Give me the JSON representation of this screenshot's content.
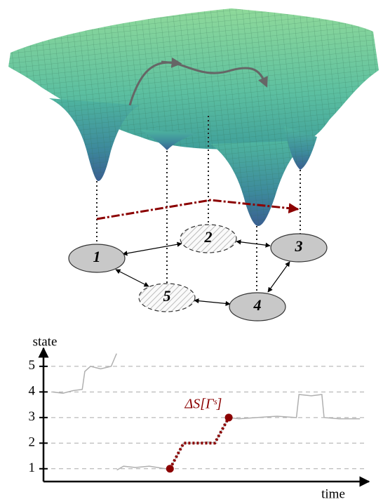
{
  "nodes": [
    {
      "label": "1"
    },
    {
      "label": "2"
    },
    {
      "label": "3"
    },
    {
      "label": "4"
    },
    {
      "label": "5"
    }
  ],
  "chart_data": {
    "type": "line",
    "y_label": "state",
    "x_label": "time",
    "annotation": "ΔS[Γˢ]",
    "xlim": [
      0,
      100
    ],
    "ylim": [
      0.5,
      5.6
    ],
    "yticks": [
      1,
      2,
      3,
      4,
      5
    ],
    "grid": true,
    "series": [
      {
        "color": "#b0b0b0",
        "x": [
          2.8,
          6.1,
          9.3,
          12.2,
          13,
          14.8,
          18,
          21.3,
          23,
          23.05,
          23.1,
          25.2,
          28.9,
          33.3,
          38.3,
          39.8,
          42,
          44.1,
          48.5,
          51.7,
          53.9,
          56.1,
          58.3,
          61.5,
          67,
          73.5,
          79.6,
          80.4,
          84.3,
          87.6,
          88.3,
          93,
          99.6
        ],
        "values": [
          4.0,
          3.95,
          4.05,
          4.1,
          4.8,
          5.0,
          4.9,
          5.0,
          5.5,
          null,
          0.95,
          1.1,
          1.05,
          1.1,
          1.0,
          1.0,
          1.5,
          2.0,
          2.0,
          2.05,
          2.0,
          2.5,
          3.0,
          2.95,
          3.0,
          3.05,
          3.0,
          3.9,
          3.85,
          3.9,
          3.0,
          2.95,
          2.95
        ]
      },
      {
        "color": "#8b0000",
        "x": [
          39.8,
          44.1,
          53.9,
          58.3
        ],
        "values": [
          1,
          2,
          2,
          3
        ]
      }
    ]
  }
}
